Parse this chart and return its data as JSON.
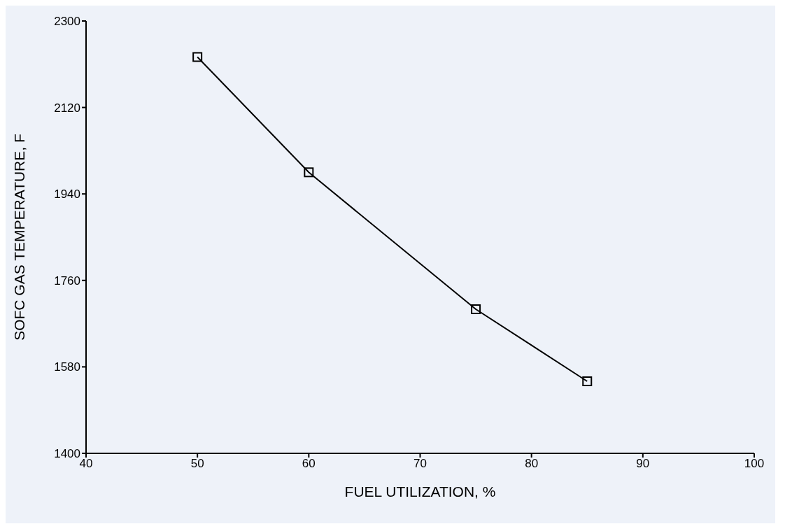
{
  "chart_data": {
    "type": "line",
    "xlabel": "FUEL UTILIZATION, %",
    "ylabel": "SOFC GAS TEMPERATURE, F",
    "x": [
      50,
      60,
      75,
      85
    ],
    "series": [
      {
        "color": "#000000",
        "values": [
          2225,
          1985,
          1700,
          1550
        ]
      }
    ],
    "xlim": [
      40,
      100
    ],
    "xticks": [
      40,
      50,
      60,
      70,
      80,
      90,
      100
    ],
    "ylim": [
      1400,
      2300
    ],
    "yticks": [
      1400,
      1580,
      1760,
      1940,
      2120,
      2300
    ],
    "grid": false,
    "legend": false,
    "marker": "square",
    "line_style": "solid"
  }
}
